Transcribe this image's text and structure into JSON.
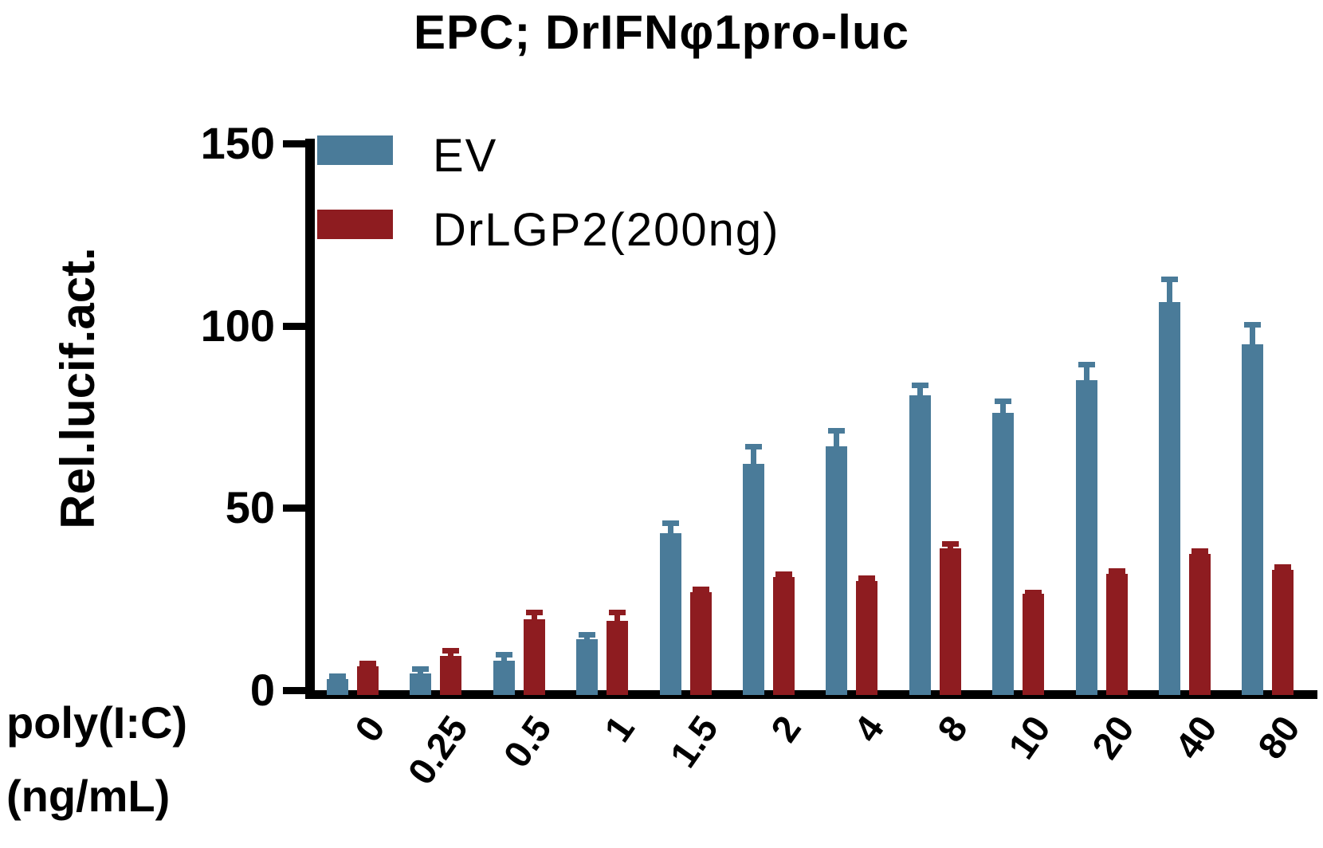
{
  "title": "EPC; DrIFNφ1pro-luc",
  "chart_data": {
    "type": "bar",
    "title": "EPC; DrIFNφ1pro-luc",
    "ylabel": "Rel.lucif.act.",
    "xlabel_line1": "poly(I:C)",
    "xlabel_line2": "(ng/mL)",
    "ylim": [
      0,
      150
    ],
    "y_ticks": [
      0,
      50,
      100,
      150
    ],
    "grid": false,
    "legend_position": "top-left",
    "background_color": "#ffffff",
    "axis_color": "#000000",
    "categories": [
      "0",
      "0.25",
      "0.5",
      "1",
      "1.5",
      "2",
      "4",
      "8",
      "10",
      "20",
      "40",
      "80"
    ],
    "series": [
      {
        "name": "EV",
        "color": "#4A7B99",
        "values": [
          3,
          4.5,
          8,
          14,
          43,
          62,
          67,
          81,
          76,
          85,
          106.5,
          95
        ],
        "errors_plus": [
          1.5,
          2,
          2.5,
          2,
          3.5,
          5.5,
          5,
          3.5,
          4,
          5,
          7,
          6
        ]
      },
      {
        "name": "DrLGP2(200ng)",
        "color": "#8E1C20",
        "values": [
          6.5,
          9.5,
          19.5,
          19,
          27,
          31,
          30,
          39,
          26.5,
          32,
          37.5,
          33
        ],
        "errors_plus": [
          1.5,
          2,
          2.5,
          3,
          1.5,
          1.5,
          1.5,
          2,
          1,
          1.5,
          1.5,
          1.5
        ]
      }
    ]
  }
}
